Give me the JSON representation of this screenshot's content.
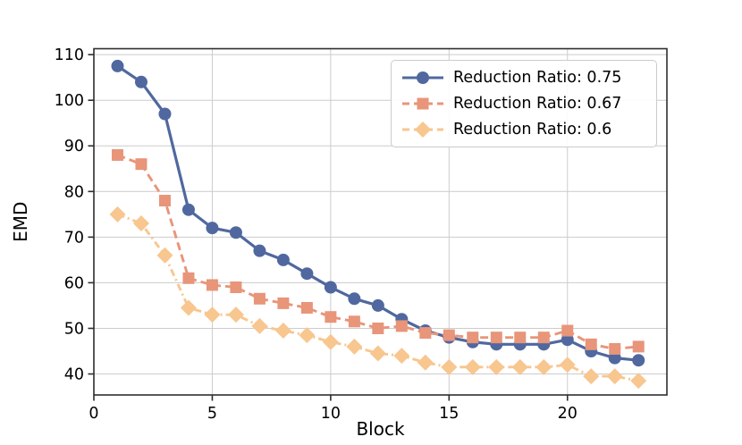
{
  "chart_data": {
    "type": "line",
    "title": "",
    "xlabel": "Block",
    "ylabel": "EMD",
    "x": [
      1,
      2,
      3,
      4,
      5,
      6,
      7,
      8,
      9,
      10,
      11,
      12,
      13,
      14,
      15,
      16,
      17,
      18,
      19,
      20,
      21,
      22,
      23
    ],
    "series": [
      {
        "name": "Reduction Ratio: 0.75",
        "color": "#50689F",
        "marker": "circle",
        "linestyle": "solid",
        "values": [
          107.5,
          104,
          97,
          76,
          72,
          71,
          67,
          65,
          62,
          59,
          56.5,
          55,
          52,
          49.5,
          48,
          47,
          46.5,
          46.5,
          46.5,
          47.5,
          45,
          43.5,
          43
        ]
      },
      {
        "name": "Reduction Ratio: 0.67",
        "color": "#E8957A",
        "marker": "square",
        "linestyle": "dashed",
        "values": [
          88,
          86,
          78,
          61,
          59.5,
          59,
          56.5,
          55.5,
          54.5,
          52.5,
          51.5,
          50,
          50.5,
          49,
          48.5,
          48,
          48,
          48,
          48,
          49.5,
          46.5,
          45.5,
          46
        ]
      },
      {
        "name": "Reduction Ratio: 0.6",
        "color": "#F8C68F",
        "marker": "diamond",
        "linestyle": "dashdot",
        "values": [
          75,
          73,
          66,
          54.5,
          53,
          53,
          50.5,
          49.5,
          48.5,
          47,
          46,
          44.5,
          44,
          42.5,
          41.5,
          41.5,
          41.5,
          41.5,
          41.5,
          42,
          39.5,
          39.5,
          38.5
        ]
      }
    ],
    "xticks": [
      0,
      5,
      10,
      15,
      20
    ],
    "yticks": [
      40,
      50,
      60,
      70,
      80,
      90,
      100,
      110
    ],
    "xlim": [
      0,
      24.2
    ],
    "ylim": [
      35.4,
      111.3
    ],
    "grid": true,
    "grid_color": "#CCCCCC",
    "spine_color": "#2E2E2E",
    "legend_position": "upper right"
  }
}
